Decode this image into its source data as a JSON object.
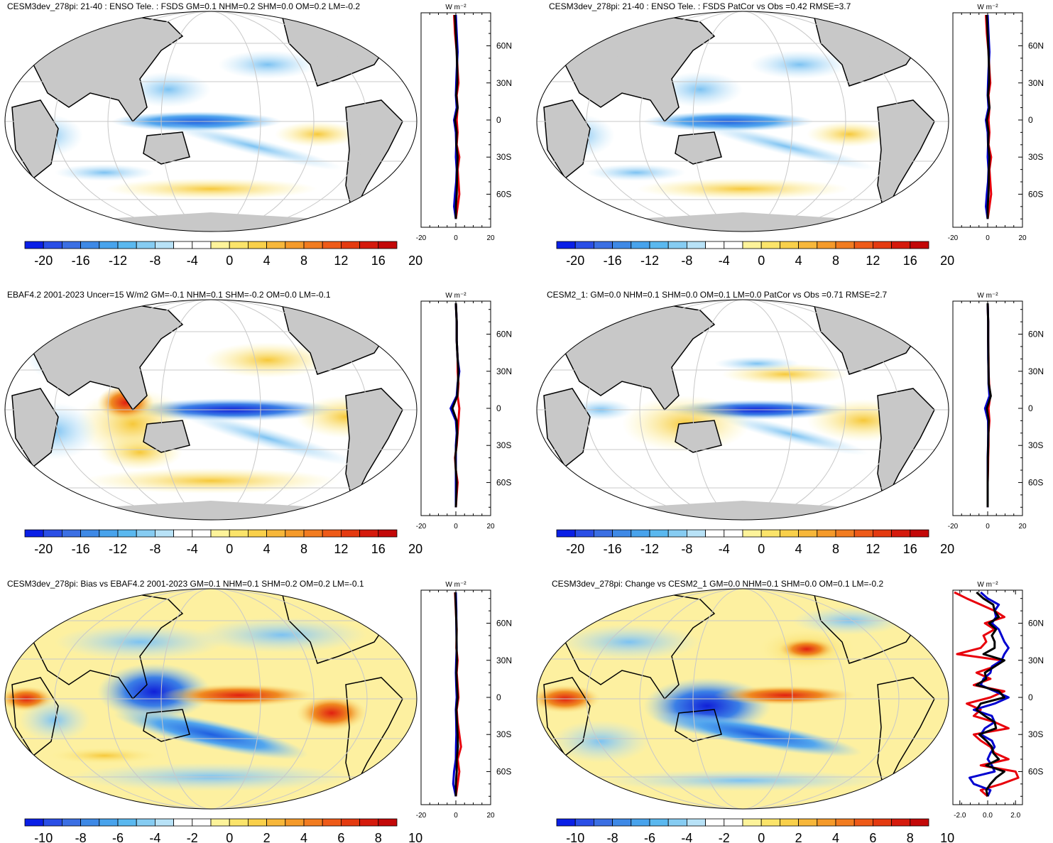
{
  "chart_data": [
    {
      "type": "heatmap",
      "title": "CESM3dev_278pi: 21-40 : ENSO Tele. : FSDS GM=0.1 NHM=0.2 SHM=0.0 OM=0.2 LM=-0.2",
      "colorbar_labels": [
        "-20",
        "-16",
        "-12",
        "-8",
        "-4",
        "0",
        "4",
        "8",
        "12",
        "16",
        "20"
      ],
      "colorbar_range": [
        -22,
        22
      ],
      "zonal": {
        "unit": "W m⁻²",
        "xticks": [
          "-20",
          "0",
          "20"
        ],
        "xlim": [
          -20,
          20
        ],
        "lat_labels": [
          "60N",
          "30N",
          "0",
          "30S",
          "60S"
        ],
        "series": [
          {
            "name": "red",
            "color": "#e8000b",
            "lat": [
              85,
              70,
              55,
              40,
              30,
              20,
              10,
              0,
              -10,
              -20,
              -30,
              -40,
              -50,
              -60,
              -70,
              -80
            ],
            "values": [
              -1,
              -0.5,
              0.5,
              1,
              1.5,
              0.5,
              1,
              0.5,
              1,
              0.5,
              2,
              1,
              1.5,
              2,
              1,
              0
            ]
          },
          {
            "name": "blue",
            "color": "#0000d0",
            "lat": [
              85,
              70,
              55,
              40,
              30,
              20,
              10,
              0,
              -10,
              -20,
              -30,
              -40,
              -50,
              -60,
              -70,
              -80
            ],
            "values": [
              0,
              0.5,
              1,
              0.5,
              0.2,
              0,
              0.5,
              -1,
              0,
              0.2,
              0,
              0.5,
              0.2,
              -0.5,
              -1,
              0
            ]
          },
          {
            "name": "black",
            "color": "#000000",
            "lat": [
              85,
              70,
              55,
              40,
              30,
              20,
              10,
              0,
              -10,
              -20,
              -30,
              -40,
              -50,
              -60,
              -70,
              -80
            ],
            "values": [
              -0.5,
              0,
              0.5,
              0.8,
              0.8,
              0.2,
              1,
              -0.5,
              0.5,
              0.3,
              1,
              0.7,
              0.6,
              0.5,
              0,
              0
            ]
          }
        ]
      }
    },
    {
      "type": "heatmap",
      "title": "CESM3dev_278pi: 21-40 : ENSO Tele. : FSDS PatCor vs Obs =0.42 RMSE=3.7",
      "colorbar_labels": [
        "-20",
        "-16",
        "-12",
        "-8",
        "-4",
        "0",
        "4",
        "8",
        "12",
        "16",
        "20"
      ],
      "colorbar_range": [
        -22,
        22
      ],
      "zonal": {
        "unit": "W m⁻²",
        "xticks": [
          "-20",
          "0",
          "20"
        ],
        "xlim": [
          -20,
          20
        ],
        "lat_labels": [
          "60N",
          "30N",
          "0",
          "30S",
          "60S"
        ],
        "series": [
          {
            "name": "red",
            "color": "#e8000b",
            "lat": [
              85,
              70,
              55,
              40,
              30,
              20,
              10,
              0,
              -10,
              -20,
              -30,
              -40,
              -50,
              -60,
              -70,
              -80
            ],
            "values": [
              -1,
              -0.5,
              0.5,
              1,
              1.5,
              0.5,
              1,
              0.5,
              1,
              0.5,
              2,
              1,
              1.5,
              2,
              1,
              0
            ]
          },
          {
            "name": "blue",
            "color": "#0000d0",
            "lat": [
              85,
              70,
              55,
              40,
              30,
              20,
              10,
              0,
              -10,
              -20,
              -30,
              -40,
              -50,
              -60,
              -70,
              -80
            ],
            "values": [
              0,
              0.5,
              1,
              0.5,
              0.2,
              0,
              0.5,
              -1,
              0,
              0.2,
              0,
              0.5,
              0.2,
              -0.5,
              -1,
              0
            ]
          },
          {
            "name": "black",
            "color": "#000000",
            "lat": [
              85,
              70,
              55,
              40,
              30,
              20,
              10,
              0,
              -10,
              -20,
              -30,
              -40,
              -50,
              -60,
              -70,
              -80
            ],
            "values": [
              -0.5,
              0,
              0.5,
              0.8,
              0.8,
              0.2,
              1,
              -0.5,
              0.5,
              0.3,
              1,
              0.7,
              0.6,
              0.5,
              0,
              0
            ]
          }
        ]
      }
    },
    {
      "type": "heatmap",
      "title": "EBAF4.2 2001-2023 Uncer=15 W/m2 GM=-0.1 NHM=0.1 SHM=-0.2 OM=0.0 LM=-0.1",
      "colorbar_labels": [
        "-20",
        "-16",
        "-12",
        "-8",
        "-4",
        "0",
        "4",
        "8",
        "12",
        "16",
        "20"
      ],
      "colorbar_range": [
        -22,
        22
      ],
      "zonal": {
        "unit": "W m⁻²",
        "xticks": [
          "-20",
          "0",
          "20"
        ],
        "xlim": [
          -20,
          20
        ],
        "lat_labels": [
          "60N",
          "30N",
          "0",
          "30S",
          "60S"
        ],
        "series": [
          {
            "name": "red",
            "color": "#e8000b",
            "lat": [
              85,
              70,
              55,
              40,
              30,
              20,
              10,
              0,
              -10,
              -20,
              -30,
              -40,
              -50,
              -60,
              -70,
              -80
            ],
            "values": [
              0,
              0.5,
              0.5,
              1,
              1,
              1.5,
              1,
              2,
              1.5,
              1,
              0.5,
              -0.5,
              0,
              1,
              0.5,
              0
            ]
          },
          {
            "name": "blue",
            "color": "#0000d0",
            "lat": [
              85,
              70,
              55,
              40,
              30,
              20,
              10,
              0,
              -10,
              -20,
              -30,
              -40,
              -50,
              -60,
              -70,
              -80
            ],
            "values": [
              0,
              0.5,
              0.5,
              1,
              2,
              1,
              0.5,
              -3,
              0,
              0.5,
              0,
              0,
              0,
              0,
              0,
              0
            ]
          },
          {
            "name": "black",
            "color": "#000000",
            "lat": [
              85,
              70,
              55,
              40,
              30,
              20,
              10,
              0,
              -10,
              -20,
              -30,
              -40,
              -50,
              -60,
              -70,
              -80
            ],
            "values": [
              0,
              0.5,
              0.5,
              1,
              1.5,
              1.2,
              0.8,
              -2,
              0.5,
              0.8,
              0.3,
              -0.3,
              0,
              0.5,
              0.3,
              0
            ]
          }
        ]
      }
    },
    {
      "type": "heatmap",
      "title": "CESM2_1: GM=0.0 NHM=0.1 SHM=0.0 OM=0.1 LM=0.0 PatCor vs Obs =0.71 RMSE=2.7",
      "colorbar_labels": [
        "-20",
        "-16",
        "-12",
        "-8",
        "-4",
        "0",
        "4",
        "8",
        "12",
        "16",
        "20"
      ],
      "colorbar_range": [
        -22,
        22
      ],
      "zonal": {
        "unit": "W m⁻²",
        "xticks": [
          "-20",
          "0",
          "20"
        ],
        "xlim": [
          -20,
          20
        ],
        "lat_labels": [
          "60N",
          "30N",
          "0",
          "30S",
          "60S"
        ],
        "series": [
          {
            "name": "red",
            "color": "#e8000b",
            "lat": [
              85,
              70,
              55,
              40,
              30,
              20,
              10,
              0,
              -10,
              -20,
              -30,
              -40,
              -50,
              -60,
              -70,
              -80
            ],
            "values": [
              0,
              0.3,
              0.3,
              0.5,
              0.5,
              0.8,
              1.5,
              0.5,
              1,
              0.5,
              0.5,
              0.3,
              0.2,
              0,
              0,
              0
            ]
          },
          {
            "name": "blue",
            "color": "#0000d0",
            "lat": [
              85,
              70,
              55,
              40,
              30,
              20,
              10,
              0,
              -10,
              -20,
              -30,
              -40,
              -50,
              -60,
              -70,
              -80
            ],
            "values": [
              0,
              0.3,
              0.3,
              0.3,
              0.5,
              0.5,
              1,
              -1.5,
              0.2,
              0.3,
              0.2,
              0,
              0,
              0,
              0,
              0
            ]
          },
          {
            "name": "black",
            "color": "#000000",
            "lat": [
              85,
              70,
              55,
              40,
              30,
              20,
              10,
              0,
              -10,
              -20,
              -30,
              -40,
              -50,
              -60,
              -70,
              -80
            ],
            "values": [
              0,
              0.3,
              0.3,
              0.4,
              0.5,
              0.6,
              1.8,
              -0.5,
              0.6,
              0.4,
              0.3,
              0.1,
              0.1,
              0,
              0,
              0
            ]
          }
        ]
      }
    },
    {
      "type": "heatmap",
      "title": "CESM3dev_278pi: Bias vs EBAF4.2 2001-2023 GM=0.1 NHM=0.1 SHM=0.2 OM=0.2 LM=-0.1",
      "colorbar_labels": [
        "-10",
        "-8",
        "-6",
        "-4",
        "-2",
        "0",
        "2",
        "4",
        "6",
        "8",
        "10"
      ],
      "colorbar_range": [
        -11,
        11
      ],
      "zonal": {
        "unit": "W m⁻²",
        "xticks": [
          "-20",
          "0",
          "20"
        ],
        "xlim": [
          -20,
          20
        ],
        "lat_labels": [
          "60N",
          "30N",
          "0",
          "30S",
          "60S"
        ],
        "series": [
          {
            "name": "red",
            "color": "#e8000b",
            "lat": [
              85,
              70,
              55,
              40,
              30,
              20,
              10,
              0,
              -10,
              -20,
              -30,
              -40,
              -50,
              -60,
              -70,
              -80
            ],
            "values": [
              -0.5,
              0,
              0.5,
              0.3,
              1,
              0.5,
              1,
              1.5,
              0.5,
              1,
              2,
              3,
              1,
              2,
              1,
              0
            ]
          },
          {
            "name": "blue",
            "color": "#0000d0",
            "lat": [
              85,
              70,
              55,
              40,
              30,
              20,
              10,
              0,
              -10,
              -20,
              -30,
              -40,
              -50,
              -60,
              -70,
              -80
            ],
            "values": [
              0,
              0.3,
              0.3,
              0.5,
              0.2,
              0,
              0.2,
              0.5,
              0,
              0.2,
              0.3,
              0.1,
              0,
              -1,
              -1.5,
              0
            ]
          },
          {
            "name": "black",
            "color": "#000000",
            "lat": [
              85,
              70,
              55,
              40,
              30,
              20,
              10,
              0,
              -10,
              -20,
              -30,
              -40,
              -50,
              -60,
              -70,
              -80
            ],
            "values": [
              -0.3,
              0.1,
              0.4,
              0.4,
              0.6,
              0.3,
              0.6,
              1,
              0.3,
              0.6,
              1,
              1.2,
              0.5,
              0.5,
              0,
              0
            ]
          }
        ]
      }
    },
    {
      "type": "heatmap",
      "title": "CESM3dev_278pi: Change vs CESM2_1 GM=0.0 NHM=0.1 SHM=0.0 OM=0.1 LM=-0.2",
      "colorbar_labels": [
        "-10",
        "-8",
        "-6",
        "-4",
        "-2",
        "0",
        "2",
        "4",
        "6",
        "8",
        "10"
      ],
      "colorbar_range": [
        -11,
        11
      ],
      "zonal": {
        "unit": "W m⁻²",
        "xticks": [
          "-2.0",
          "0.0",
          "2.0"
        ],
        "xlim": [
          -2.5,
          2.5
        ],
        "lat_labels": [
          "60N",
          "30N",
          "0",
          "30S",
          "60S"
        ],
        "series": [
          {
            "name": "red",
            "color": "#e8000b",
            "lat": [
              85,
              80,
              75,
              70,
              65,
              60,
              55,
              50,
              45,
              40,
              35,
              30,
              25,
              20,
              15,
              10,
              5,
              0,
              -5,
              -10,
              -15,
              -20,
              -25,
              -30,
              -35,
              -40,
              -45,
              -50,
              -55,
              -60,
              -65,
              -70,
              -75,
              -80
            ],
            "values": [
              -2.4,
              -1.5,
              -0.5,
              0.5,
              1.2,
              -0.2,
              0.5,
              -0.3,
              -0.1,
              -0.5,
              -2.2,
              1,
              0.5,
              -0.8,
              0.2,
              -1,
              1.2,
              0.2,
              -1.5,
              -0.5,
              -1,
              0.5,
              1.5,
              -1,
              -0.5,
              0.2,
              0.5,
              1.5,
              -0.5,
              2,
              2.2,
              1,
              -0.5,
              0
            ]
          },
          {
            "name": "blue",
            "color": "#0000d0",
            "lat": [
              85,
              80,
              75,
              70,
              65,
              60,
              55,
              50,
              45,
              40,
              35,
              30,
              25,
              20,
              15,
              10,
              5,
              0,
              -5,
              -10,
              -15,
              -20,
              -25,
              -30,
              -35,
              -40,
              -45,
              -50,
              -55,
              -60,
              -65,
              -70,
              -75,
              -80
            ],
            "values": [
              -0.5,
              0,
              0.8,
              0.5,
              0.6,
              0.3,
              0.8,
              1,
              1.2,
              1.5,
              1.2,
              1,
              0.3,
              0.2,
              -0.3,
              -0.5,
              0.5,
              1.5,
              0.5,
              -1,
              0.3,
              0.5,
              -0.2,
              -0.5,
              0.3,
              0.5,
              0.2,
              0,
              0.3,
              0.5,
              -1.3,
              -1,
              0.2,
              0
            ]
          },
          {
            "name": "black",
            "color": "#000000",
            "lat": [
              85,
              80,
              75,
              70,
              65,
              60,
              55,
              50,
              45,
              40,
              35,
              30,
              25,
              20,
              15,
              10,
              5,
              0,
              -5,
              -10,
              -15,
              -20,
              -25,
              -30,
              -35,
              -40,
              -45,
              -50,
              -55,
              -60,
              -65,
              -70,
              -75,
              -80
            ],
            "values": [
              -0.8,
              -0.3,
              0.4,
              0.5,
              0.8,
              0.1,
              0.6,
              0.3,
              0.5,
              0.5,
              -0.3,
              1.2,
              0.5,
              -0.2,
              -0.1,
              -0.8,
              0.8,
              1.2,
              -0.5,
              -0.8,
              -0.2,
              0.5,
              0.6,
              -0.6,
              -0.1,
              0.3,
              0.4,
              0.8,
              -0.1,
              1.2,
              0.6,
              0.2,
              -0.1,
              0
            ]
          }
        ]
      }
    }
  ]
}
